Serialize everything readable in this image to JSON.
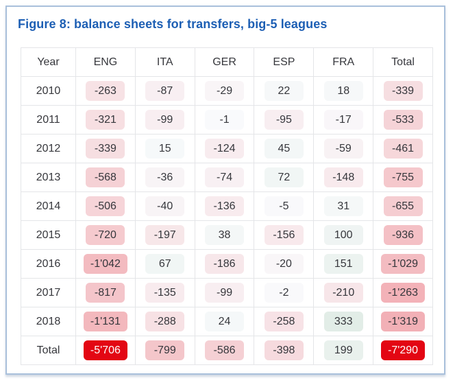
{
  "chart_data": {
    "type": "table",
    "title": "Figure 8: balance sheets for transfers, big-5 leagues",
    "columns": [
      "Year",
      "ENG",
      "ITA",
      "GER",
      "ESP",
      "FRA",
      "Total"
    ],
    "rows": [
      {
        "label": "2010",
        "values": [
          -263,
          -87,
          -29,
          22,
          18,
          -339
        ]
      },
      {
        "label": "2011",
        "values": [
          -321,
          -99,
          -1,
          -95,
          -17,
          -533
        ]
      },
      {
        "label": "2012",
        "values": [
          -339,
          15,
          -124,
          45,
          -59,
          -461
        ]
      },
      {
        "label": "2013",
        "values": [
          -568,
          -36,
          -74,
          72,
          -148,
          -755
        ]
      },
      {
        "label": "2014",
        "values": [
          -506,
          -40,
          -136,
          -5,
          31,
          -655
        ]
      },
      {
        "label": "2015",
        "values": [
          -720,
          -197,
          38,
          -156,
          100,
          -936
        ]
      },
      {
        "label": "2016",
        "values": [
          -1042,
          67,
          -186,
          -20,
          151,
          -1029
        ]
      },
      {
        "label": "2017",
        "values": [
          -817,
          -135,
          -99,
          -2,
          -210,
          -1263
        ]
      },
      {
        "label": "2018",
        "values": [
          -1131,
          -288,
          24,
          -258,
          333,
          -1319
        ]
      },
      {
        "label": "Total",
        "values": [
          -5706,
          -799,
          -586,
          -398,
          199,
          -7290
        ]
      }
    ],
    "value_format": {
      "thousands_separator": "'"
    },
    "heatmap": {
      "negative_color": "#e30613",
      "positive_color": "#2e8b47",
      "neutral_color": "#f9fafc",
      "max_abs": 7290,
      "exponent": 0.7,
      "solid_threshold": 0.6,
      "solid_text_color": "#ffffff",
      "text_color": "#36373c"
    }
  },
  "colors": {
    "title": "#1d5fb4",
    "card_border": "#a9c0db",
    "grid_line": "#e4e5e8",
    "text": "#36373c"
  }
}
